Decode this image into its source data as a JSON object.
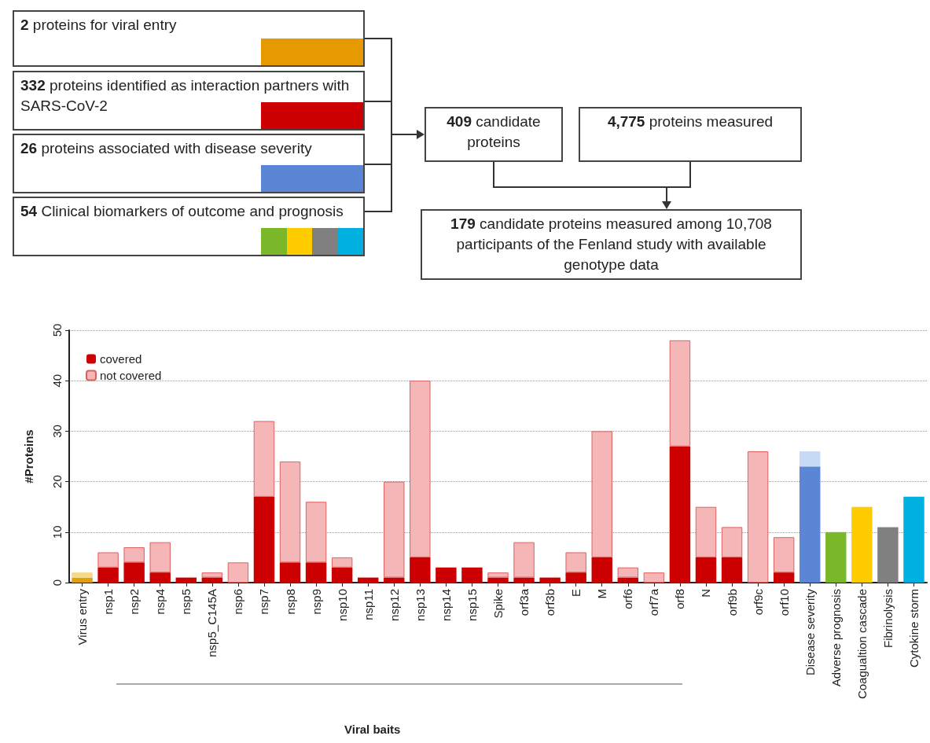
{
  "chart_data": [
    {
      "type": "other",
      "annotations": [
        "2 proteins for viral entry",
        "332 proteins identified as interaction partners with SARS-CoV-2",
        "26 proteins associated with disease severity",
        "54  Clinical biomarkers of outcome and prognosis",
        "409 candidate proteins",
        "4,775 proteins measured",
        "179 candidate proteins measured among 10,708 participants of the Fenland study with available genotype data"
      ]
    },
    {
      "type": "bar",
      "stacked": true,
      "ylabel": "#Proteins",
      "annotations": [
        "Viral baits"
      ],
      "ylim": [
        0,
        50
      ],
      "yticks": [
        0,
        10,
        20,
        30,
        40,
        50
      ],
      "grid": "y",
      "legend": "top left",
      "categories": [
        "Virus entry",
        "nsp1",
        "nsp2",
        "nsp4",
        "nsp5",
        "nsp5_C145A",
        "nsp6",
        "nsp7",
        "nsp8",
        "nsp9",
        "nsp10",
        "nsp11",
        "nsp12",
        "nsp13",
        "nsp14",
        "nsp15",
        "Spike",
        "orf3a",
        "orf3b",
        "E",
        "M",
        "orf6",
        "orf7a",
        "orf8",
        "N",
        "orf9b",
        "orf9c",
        "orf10",
        "Disease severity",
        "Adverse prognosis",
        "Coagualtion cascade",
        "Fibrinolysis",
        "Cytokine storm"
      ],
      "series": [
        {
          "name": "covered",
          "color": "#cc0000",
          "colors": [
            "#e0a010",
            "#cc0000",
            "#cc0000",
            "#cc0000",
            "#cc0000",
            "#cc0000",
            "#cc0000",
            "#cc0000",
            "#cc0000",
            "#cc0000",
            "#cc0000",
            "#cc0000",
            "#cc0000",
            "#cc0000",
            "#cc0000",
            "#cc0000",
            "#cc0000",
            "#cc0000",
            "#cc0000",
            "#cc0000",
            "#cc0000",
            "#cc0000",
            "#cc0000",
            "#cc0000",
            "#cc0000",
            "#cc0000",
            "#cc0000",
            "#cc0000",
            "#5b86d6",
            "#7ab829",
            "#ffcc00",
            "#808080",
            "#00b0e0"
          ],
          "values": [
            1,
            3,
            4,
            2,
            1,
            1,
            0,
            17,
            4,
            4,
            3,
            1,
            1,
            5,
            3,
            3,
            1,
            1,
            1,
            2,
            5,
            1,
            0,
            27,
            5,
            5,
            0,
            2,
            23,
            10,
            15,
            11,
            17
          ]
        },
        {
          "name": "not covered",
          "color": "#f4b6b6",
          "colors": [
            "#f7d98a",
            "#f4b6b6",
            "#f4b6b6",
            "#f4b6b6",
            "#f4b6b6",
            "#f4b6b6",
            "#f4b6b6",
            "#f4b6b6",
            "#f4b6b6",
            "#f4b6b6",
            "#f4b6b6",
            "#f4b6b6",
            "#f4b6b6",
            "#f4b6b6",
            "#f4b6b6",
            "#f4b6b6",
            "#f4b6b6",
            "#f4b6b6",
            "#f4b6b6",
            "#f4b6b6",
            "#f4b6b6",
            "#f4b6b6",
            "#f4b6b6",
            "#f4b6b6",
            "#f4b6b6",
            "#f4b6b6",
            "#f4b6b6",
            "#f4b6b6",
            "#c6d9f5",
            "#f4b6b6",
            "#f4b6b6",
            "#f4b6b6",
            "#f4b6b6"
          ],
          "values": [
            1,
            3,
            3,
            6,
            0,
            1,
            4,
            15,
            20,
            12,
            2,
            0,
            19,
            35,
            0,
            0,
            1,
            7,
            0,
            4,
            25,
            2,
            2,
            21,
            10,
            6,
            26,
            7,
            3,
            0,
            0,
            0,
            0
          ]
        }
      ]
    }
  ]
}
